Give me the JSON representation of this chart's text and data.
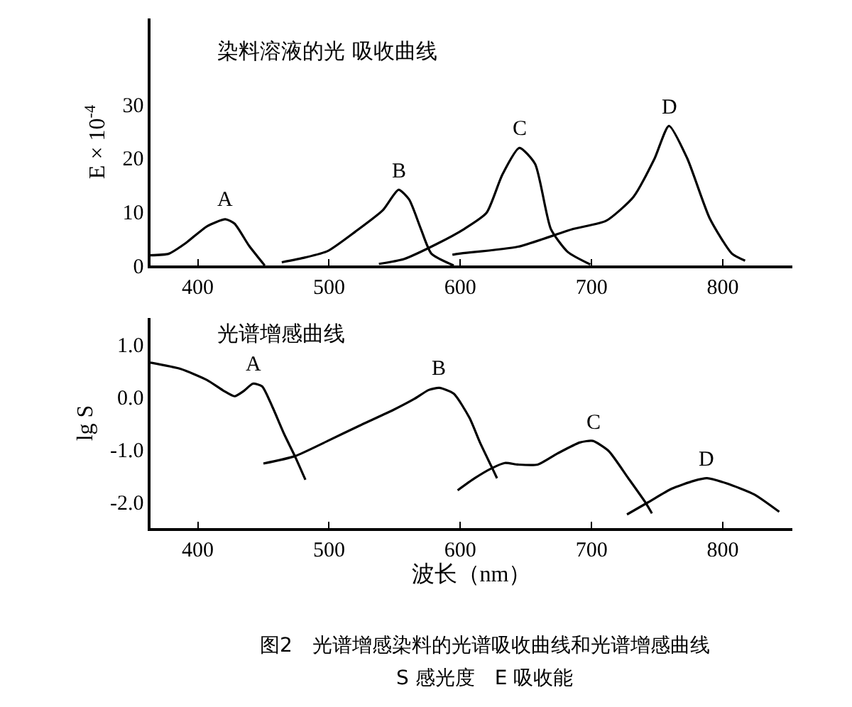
{
  "chart_data": [
    {
      "type": "line",
      "title": "染料溶液的光 吸收曲线",
      "ylabel": "E × 10$^{-4}$",
      "xlim": [
        364,
        853
      ],
      "xticks": [
        400,
        500,
        600,
        700,
        800
      ],
      "ylim": [
        0,
        46
      ],
      "yticks": [
        0,
        10,
        20,
        30
      ],
      "legend": false,
      "marker": "none",
      "line_style": "solid",
      "series": [
        {
          "name": "A",
          "color": "#000000",
          "x": [
            364,
            378,
            391,
            407,
            421,
            428,
            439,
            451
          ],
          "values": [
            1.9,
            2.2,
            4.2,
            7.3,
            8.6,
            7.8,
            3.7,
            0
          ]
        },
        {
          "name": "B",
          "color": "#000000",
          "x": [
            464,
            482,
            499,
            520,
            541,
            553,
            561,
            570,
            578,
            595
          ],
          "values": [
            0.6,
            1.5,
            2.7,
            6.3,
            10.3,
            14.1,
            12.3,
            6.8,
            2.2,
            0
          ]
        },
        {
          "name": "C",
          "color": "#000000",
          "x": [
            538,
            557,
            582,
            603,
            620,
            632,
            645,
            657,
            669,
            682,
            699
          ],
          "values": [
            0.3,
            1.2,
            4.0,
            6.8,
            9.8,
            16.9,
            21.9,
            18.9,
            6.8,
            2.5,
            0.2
          ]
        },
        {
          "name": "D",
          "color": "#000000",
          "x": [
            594,
            599,
            644,
            686,
            711,
            732,
            748,
            759,
            773,
            790,
            807,
            817
          ],
          "values": [
            2.0,
            2.2,
            3.5,
            6.8,
            8.3,
            12.8,
            19.9,
            26.0,
            19.9,
            8.8,
            2.2,
            0.9
          ]
        }
      ]
    },
    {
      "type": "line",
      "title": "光谱增感曲线",
      "ylabel": "lg S",
      "xlabel": "波长（nm）",
      "xlim": [
        364,
        853
      ],
      "xticks": [
        400,
        500,
        600,
        700,
        800
      ],
      "ylim": [
        -2.5,
        1.5
      ],
      "yticks": [
        {
          "value": 1,
          "label": "1.0"
        },
        {
          "value": 0,
          "label": "0.0"
        },
        {
          "value": -1,
          "label": "-1.0"
        },
        {
          "value": -2,
          "label": "-2.0"
        }
      ],
      "legend": false,
      "marker": "none",
      "line_style": "solid",
      "annotations": [
        "图2　光谱增感染料的光谱吸收曲线和光谱增感曲线",
        "S 感光度　E 吸收能"
      ],
      "series": [
        {
          "name": "A",
          "color": "#000000",
          "x": [
            364,
            387,
            407,
            420,
            428,
            435,
            442,
            449,
            457,
            466,
            474,
            482
          ],
          "values": [
            0.65,
            0.53,
            0.32,
            0.11,
            0.01,
            0.11,
            0.25,
            0.2,
            -0.2,
            -0.72,
            -1.13,
            -1.58
          ]
        },
        {
          "name": "B",
          "color": "#000000",
          "x": [
            450,
            474,
            499,
            524,
            549,
            565,
            576,
            584,
            595,
            607,
            615,
            624,
            628
          ],
          "values": [
            -1.27,
            -1.13,
            -0.84,
            -0.54,
            -0.25,
            -0.04,
            0.13,
            0.17,
            0.06,
            -0.4,
            -0.87,
            -1.34,
            -1.55
          ]
        },
        {
          "name": "C",
          "color": "#000000",
          "x": [
            598,
            611,
            624,
            634,
            644,
            659,
            674,
            691,
            701,
            713,
            728,
            741,
            746
          ],
          "values": [
            -1.78,
            -1.55,
            -1.36,
            -1.26,
            -1.29,
            -1.29,
            -1.08,
            -0.87,
            -0.84,
            -1.03,
            -1.55,
            -2.01,
            -2.22
          ]
        },
        {
          "name": "D",
          "color": "#000000",
          "x": [
            727,
            743,
            761,
            778,
            788,
            803,
            824,
            843
          ],
          "values": [
            -2.24,
            -2.01,
            -1.75,
            -1.6,
            -1.55,
            -1.65,
            -1.86,
            -2.19
          ]
        }
      ]
    }
  ]
}
